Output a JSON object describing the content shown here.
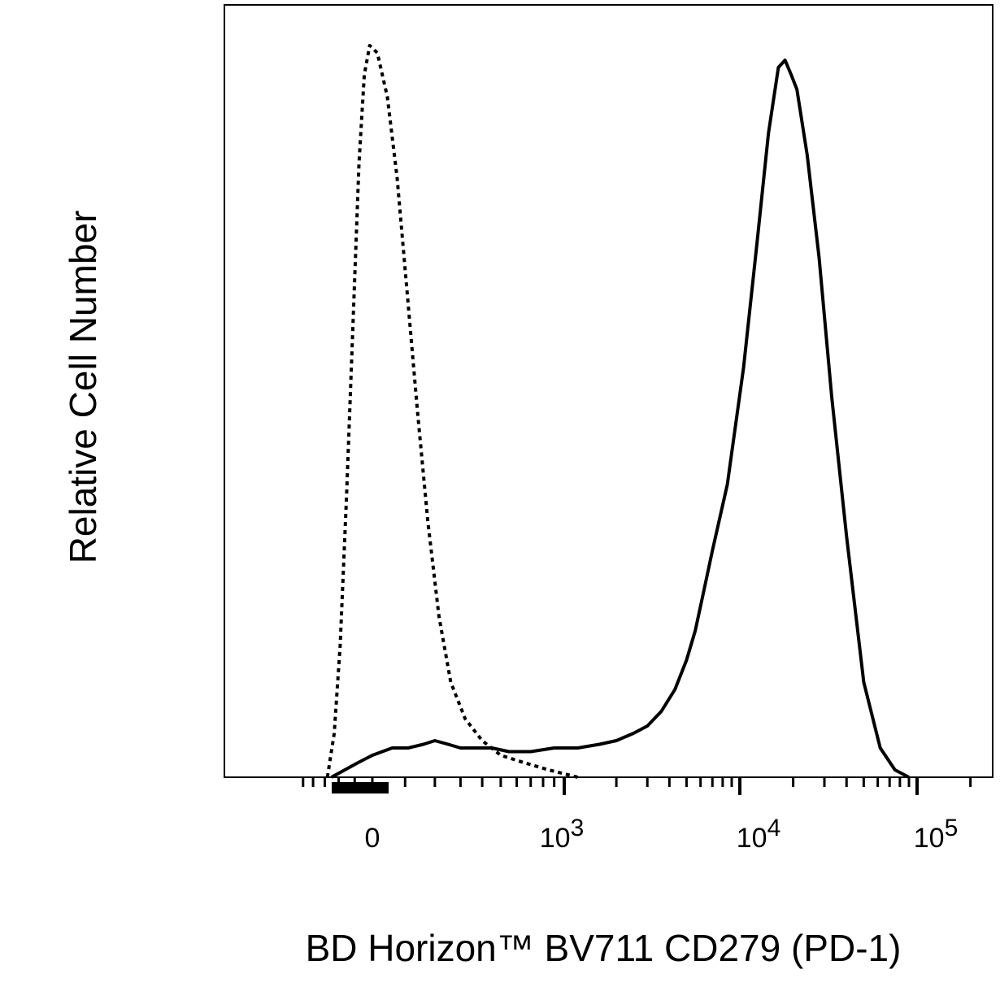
{
  "chart_data": {
    "type": "line",
    "title": "",
    "xlabel": "BD Horizon™ BV711 CD279 (PD-1)",
    "ylabel": "Relative Cell Number",
    "x_scale": "biexponential",
    "xlim": [
      -600,
      180000
    ],
    "ylim": [
      0,
      100
    ],
    "grid": false,
    "legend": "none",
    "x_tick_labels": [
      {
        "value": 0,
        "base": "0",
        "exp": ""
      },
      {
        "value": 1000,
        "base": "10",
        "exp": "3"
      },
      {
        "value": 10000,
        "base": "10",
        "exp": "4"
      },
      {
        "value": 100000,
        "base": "10",
        "exp": "5"
      }
    ],
    "series": [
      {
        "style": "dotted",
        "color": "#000000",
        "points": [
          [
            -280,
            0
          ],
          [
            -230,
            6
          ],
          [
            -190,
            18
          ],
          [
            -150,
            38
          ],
          [
            -110,
            62
          ],
          [
            -75,
            84
          ],
          [
            -45,
            96
          ],
          [
            -15,
            100
          ],
          [
            15,
            99
          ],
          [
            45,
            93
          ],
          [
            75,
            82
          ],
          [
            105,
            67
          ],
          [
            140,
            50
          ],
          [
            175,
            35
          ],
          [
            215,
            22
          ],
          [
            260,
            13
          ],
          [
            320,
            8
          ],
          [
            400,
            5
          ],
          [
            500,
            3
          ],
          [
            650,
            2
          ],
          [
            850,
            1
          ],
          [
            1200,
            0
          ]
        ]
      },
      {
        "style": "solid",
        "color": "#000000",
        "points": [
          [
            -250,
            0
          ],
          [
            -160,
            1
          ],
          [
            -80,
            2
          ],
          [
            0,
            3
          ],
          [
            60,
            4
          ],
          [
            110,
            4
          ],
          [
            160,
            4.5
          ],
          [
            200,
            5
          ],
          [
            250,
            4.5
          ],
          [
            300,
            4
          ],
          [
            380,
            4
          ],
          [
            450,
            4
          ],
          [
            550,
            3.5
          ],
          [
            700,
            3.5
          ],
          [
            900,
            4
          ],
          [
            1200,
            4
          ],
          [
            1600,
            4.5
          ],
          [
            2000,
            5
          ],
          [
            2500,
            6
          ],
          [
            3000,
            7
          ],
          [
            3600,
            9
          ],
          [
            4300,
            12
          ],
          [
            5000,
            16
          ],
          [
            5600,
            20
          ],
          [
            6200,
            25
          ],
          [
            7000,
            31
          ],
          [
            8500,
            40
          ],
          [
            10500,
            56
          ],
          [
            12500,
            73
          ],
          [
            14500,
            88
          ],
          [
            16500,
            97
          ],
          [
            18000,
            98
          ],
          [
            19500,
            96
          ],
          [
            21000,
            94
          ],
          [
            24000,
            85
          ],
          [
            28000,
            71
          ],
          [
            33000,
            52
          ],
          [
            40000,
            33
          ],
          [
            50000,
            13
          ],
          [
            62000,
            4
          ],
          [
            75000,
            1
          ],
          [
            90000,
            0
          ]
        ]
      }
    ]
  }
}
